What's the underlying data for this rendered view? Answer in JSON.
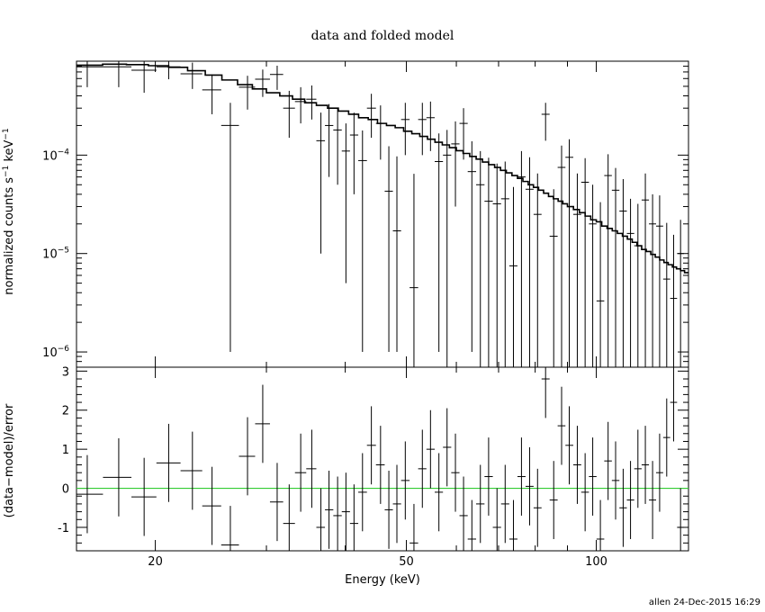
{
  "chart_data": [
    {
      "type": "scatter",
      "panel": "top",
      "title": "data and folded model",
      "xlabel": "",
      "ylabel": "normalized counts s⁻¹ keV⁻¹",
      "xscale": "log",
      "yscale": "log",
      "xlim": [
        15,
        140
      ],
      "ylim": [
        7e-07,
        0.0009
      ],
      "yticks": [
        {
          "value": 0.0001,
          "mant": "10",
          "exp": "−4"
        },
        {
          "value": 1e-05,
          "mant": "10",
          "exp": "−5"
        },
        {
          "value": 1e-06,
          "mant": "10",
          "exp": "−6"
        }
      ],
      "series": [
        {
          "kind": "data-errorbars",
          "x": [
            15.6,
            17.5,
            19.2,
            21.0,
            22.9,
            24.6,
            26.3,
            28.0,
            29.6,
            31.2,
            32.6,
            34.0,
            35.4,
            36.6,
            37.7,
            38.9,
            40.1,
            41.3,
            42.6,
            44.0,
            45.5,
            46.9,
            48.3,
            49.8,
            51.4,
            53.0,
            54.6,
            56.3,
            58.0,
            59.8,
            61.6,
            63.5,
            65.5,
            67.5,
            69.6,
            71.7,
            73.9,
            76.1,
            78.4,
            80.7,
            83.1,
            85.6,
            88.1,
            90.6,
            93.3,
            96.0,
            98.7,
            101.5,
            104.4,
            107.3,
            110.3,
            113.3,
            116.4,
            119.6,
            122.8,
            126.0,
            129.3,
            132.6,
            136.0
          ],
          "y": [
            0.00079,
            0.00079,
            0.00073,
            0.00079,
            0.00067,
            0.00046,
            0.0002,
            0.00049,
            0.00059,
            0.00066,
            0.0003,
            0.00035,
            0.00037,
            0.00014,
            0.0002,
            0.00018,
            0.00011,
            0.00016,
            8.8e-05,
            0.0003,
            0.00021,
            4.3e-05,
            1.7e-05,
            0.00023,
            4.5e-06,
            0.00023,
            0.00024,
            8.6e-05,
            0.0001,
            0.00013,
            0.00021,
            6.8e-05,
            5e-05,
            3.4e-05,
            3.2e-05,
            3.6e-05,
            7.5e-06,
            6e-05,
            4.5e-05,
            2.5e-05,
            0.00026,
            1.5e-05,
            7.5e-05,
            9.5e-05,
            2.5e-05,
            5.3e-05,
            2e-05,
            3.3e-06,
            6.2e-05,
            4.4e-05,
            2.7e-05,
            1.6e-05,
            1.2e-05,
            3.5e-05,
            2e-05,
            1.9e-05,
            5.5e-06,
            3.5e-06,
            1e-05
          ],
          "yerr_lo": [
            0.0003,
            0.0003,
            0.0003,
            0.0002,
            0.0002,
            0.0002,
            0.000199,
            0.0002,
            0.0002,
            0.0002,
            0.00015,
            0.00014,
            0.00014,
            0.00013,
            0.00014,
            0.00013,
            0.000105,
            0.00012,
            8.7e-05,
            0.00015,
            0.00012,
            4.2e-05,
            1.6e-05,
            0.00013,
            4.4e-06,
            0.00013,
            0.00013,
            8.5e-05,
            9.95e-05,
            0.0001,
            0.00012,
            6.7e-05,
            4.95e-05,
            3.35e-05,
            3.15e-05,
            3.55e-05,
            7.4e-06,
            5.95e-05,
            4.45e-05,
            2.45e-05,
            0.00012,
            1.45e-05,
            7.45e-05,
            9.45e-05,
            2.45e-05,
            5.25e-05,
            1.95e-05,
            3.2e-06,
            6.15e-05,
            4.35e-05,
            2.65e-05,
            1.55e-05,
            1.15e-05,
            3.45e-05,
            1.95e-05,
            1.85e-05,
            5.4e-06,
            3.4e-06,
            9.9e-06
          ],
          "yerr_hi": [
            0.0002,
            0.0002,
            0.0002,
            0.0002,
            0.0002,
            0.0002,
            0.00014,
            0.00015,
            0.00015,
            0.00015,
            0.00015,
            0.00014,
            0.00014,
            0.00013,
            0.00013,
            0.00012,
            0.0001,
            0.00011,
            9e-05,
            0.00012,
            0.00011,
            8e-05,
            8e-05,
            0.00011,
            6e-05,
            0.00011,
            0.00011,
            8e-05,
            8e-05,
            9e-05,
            9e-05,
            7e-05,
            6e-05,
            6e-05,
            5e-05,
            5e-05,
            4e-05,
            5e-05,
            5e-05,
            4e-05,
            8e-05,
            3e-05,
            5e-05,
            5e-05,
            4e-05,
            4e-05,
            3e-05,
            3e-05,
            4e-05,
            3e-05,
            3e-05,
            2e-05,
            2e-05,
            3e-05,
            2e-05,
            2e-05,
            1.5e-05,
            1.2e-05,
            1.2e-05
          ]
        },
        {
          "kind": "model-step",
          "x": [
            15.0,
            16.5,
            18.0,
            19.5,
            21.0,
            22.5,
            24.0,
            25.5,
            27.0,
            28.5,
            30.0,
            31.5,
            33.0,
            34.5,
            36.0,
            37.5,
            39.0,
            40.5,
            42.0,
            43.5,
            45.0,
            46.5,
            48.0,
            49.5,
            51.0,
            52.5,
            54.0,
            55.5,
            57.0,
            58.5,
            60.0,
            61.5,
            63.0,
            64.5,
            66.0,
            67.5,
            69.0,
            70.5,
            72.0,
            73.5,
            75.0,
            76.5,
            78.0,
            79.5,
            81.0,
            82.5,
            84.0,
            85.5,
            87.0,
            88.5,
            90.0,
            92.0,
            94.0,
            96.0,
            98.0,
            100.0,
            102.0,
            104.0,
            106.0,
            108.0,
            110.0,
            112.0,
            114.0,
            116.0,
            118.0,
            120.0,
            122.0,
            124.0,
            126.0,
            128.0,
            130.0,
            132.0,
            134.0,
            136.0,
            138.0,
            140.0
          ],
          "y": [
            0.00082,
            0.00084,
            0.00083,
            0.00081,
            0.00078,
            0.00072,
            0.00065,
            0.00058,
            0.00052,
            0.00047,
            0.00043,
            0.0004,
            0.00037,
            0.00034,
            0.00032,
            0.0003,
            0.00028,
            0.00026,
            0.00024,
            0.00023,
            0.00021,
            0.0002,
            0.00019,
            0.000175,
            0.000165,
            0.000155,
            0.000145,
            0.000135,
            0.000127,
            0.000119,
            0.000111,
            0.000104,
            9.7e-05,
            9.1e-05,
            8.5e-05,
            8e-05,
            7.5e-05,
            7e-05,
            6.6e-05,
            6.2e-05,
            5.8e-05,
            5.4e-05,
            5e-05,
            4.7e-05,
            4.4e-05,
            4.1e-05,
            3.8e-05,
            3.6e-05,
            3.4e-05,
            3.2e-05,
            3e-05,
            2.8e-05,
            2.6e-05,
            2.4e-05,
            2.2e-05,
            2.1e-05,
            1.9e-05,
            1.8e-05,
            1.7e-05,
            1.6e-05,
            1.5e-05,
            1.4e-05,
            1.3e-05,
            1.2e-05,
            1.1e-05,
            1.05e-05,
            9.8e-06,
            9.2e-06,
            8.6e-06,
            8.1e-06,
            7.7e-06,
            7.3e-06,
            7e-06,
            6.7e-06,
            6.4e-06,
            6.2e-06
          ]
        }
      ]
    },
    {
      "type": "scatter",
      "panel": "bottom",
      "title": "",
      "xlabel": "Energy (keV)",
      "ylabel": "(data−model)/error",
      "xscale": "log",
      "yscale": "linear",
      "xlim": [
        15,
        140
      ],
      "ylim": [
        -1.6,
        3.1
      ],
      "xticks": [
        20,
        50,
        100
      ],
      "yticks": [
        3,
        2,
        1,
        0,
        -1
      ],
      "zero_line_color": "#33cc33",
      "series": [
        {
          "kind": "residual-errorbars",
          "x": [
            15.6,
            17.5,
            19.2,
            21.0,
            22.9,
            24.6,
            26.3,
            28.0,
            29.6,
            31.2,
            32.6,
            34.0,
            35.4,
            36.6,
            37.7,
            38.9,
            40.1,
            41.3,
            42.6,
            44.0,
            45.5,
            46.9,
            48.3,
            49.8,
            51.4,
            53.0,
            54.6,
            56.3,
            58.0,
            59.8,
            61.6,
            63.5,
            65.5,
            67.5,
            69.6,
            71.7,
            73.9,
            76.1,
            78.4,
            80.7,
            83.1,
            85.6,
            88.1,
            90.6,
            93.3,
            96.0,
            98.7,
            101.5,
            104.4,
            107.3,
            110.3,
            113.3,
            116.4,
            119.6,
            122.8,
            126.0,
            129.3,
            132.6,
            136.0
          ],
          "y": [
            -0.15,
            0.28,
            -0.22,
            0.65,
            0.45,
            -0.45,
            -1.45,
            0.82,
            1.65,
            -0.35,
            -0.9,
            0.4,
            0.5,
            -1.0,
            -0.55,
            -0.7,
            -0.6,
            -0.9,
            -0.1,
            1.1,
            0.6,
            -0.55,
            -0.4,
            0.2,
            -1.4,
            0.5,
            1.0,
            -0.1,
            1.05,
            0.4,
            -0.7,
            -1.3,
            -0.4,
            0.3,
            -1.0,
            -0.4,
            -1.3,
            0.3,
            0.05,
            -0.5,
            2.8,
            -0.3,
            1.6,
            1.1,
            0.6,
            -0.1,
            0.3,
            -1.3,
            0.7,
            0.2,
            -0.5,
            -0.3,
            0.5,
            0.6,
            -0.3,
            0.4,
            1.3,
            2.2,
            -1.0
          ],
          "err": [
            1.0,
            1.0,
            1.0,
            1.0,
            1.0,
            1.0,
            1.0,
            1.0,
            1.0,
            1.0,
            1.0,
            1.0,
            1.0,
            1.0,
            1.0,
            1.0,
            1.0,
            1.0,
            1.0,
            1.0,
            1.0,
            1.0,
            1.0,
            1.0,
            1.0,
            1.0,
            1.0,
            1.0,
            1.0,
            1.0,
            1.0,
            1.0,
            1.0,
            1.0,
            1.0,
            1.0,
            1.0,
            1.0,
            1.0,
            1.0,
            1.0,
            1.0,
            1.0,
            1.0,
            1.0,
            1.0,
            1.0,
            1.0,
            1.0,
            1.0,
            1.0,
            1.0,
            1.0,
            1.0,
            1.0,
            1.0,
            1.0,
            1.0,
            1.0
          ]
        }
      ]
    }
  ],
  "footer": "allen 24-Dec-2015 16:29"
}
